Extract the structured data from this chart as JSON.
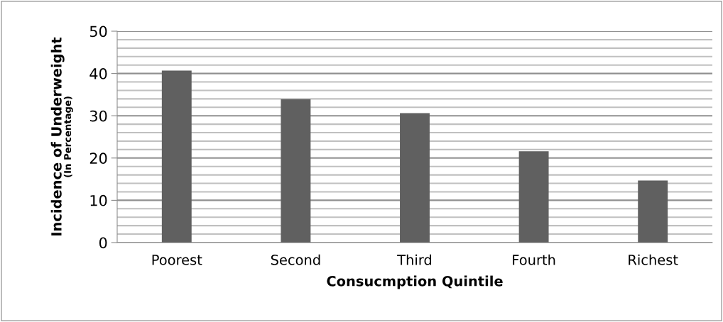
{
  "chart_data": {
    "type": "bar",
    "xlabel": "Consucmption Quintile",
    "ylabel": "Incidence of Underweight\n(In Percentage)",
    "categories": [
      "Poorest",
      "Second",
      "Third",
      "Fourth",
      "Richest"
    ],
    "values": [
      40.7,
      33.9,
      30.6,
      21.6,
      14.7
    ],
    "color": "#606060",
    "ylim": [
      0,
      50
    ],
    "yticks": [
      0,
      10,
      20,
      30,
      40,
      50
    ],
    "grid": "y",
    "legend": false
  }
}
